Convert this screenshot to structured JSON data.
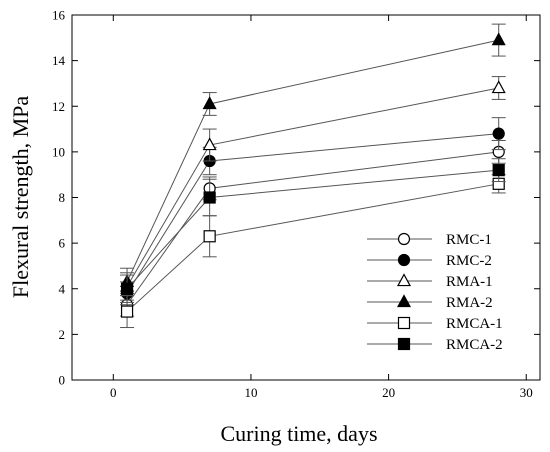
{
  "chart_data": {
    "type": "line",
    "xlabel": "Curing time, days",
    "ylabel": "Flexural strength, MPa",
    "xlim": [
      -3,
      31
    ],
    "ylim": [
      0,
      16
    ],
    "xticks": [
      0,
      10,
      20,
      30
    ],
    "yticks": [
      0,
      2,
      4,
      6,
      8,
      10,
      12,
      14,
      16
    ],
    "grid": false,
    "legend_position": "bottom-right",
    "series": [
      {
        "name": "RMC-1",
        "marker": "circle-open",
        "x": [
          1,
          7,
          28
        ],
        "y": [
          3.3,
          8.4,
          10.0
        ],
        "err": [
          0.5,
          0.5,
          0.5
        ]
      },
      {
        "name": "RMC-2",
        "marker": "circle-filled",
        "x": [
          1,
          7,
          28
        ],
        "y": [
          3.8,
          9.6,
          10.8
        ],
        "err": [
          0.5,
          0.6,
          0.7
        ]
      },
      {
        "name": "RMA-1",
        "marker": "triangle-open",
        "x": [
          1,
          7,
          28
        ],
        "y": [
          4.1,
          10.3,
          12.8
        ],
        "err": [
          0.6,
          0.7,
          0.5
        ]
      },
      {
        "name": "RMA-2",
        "marker": "triangle-filled",
        "x": [
          1,
          7,
          28
        ],
        "y": [
          4.3,
          12.1,
          14.9
        ],
        "err": [
          0.6,
          0.5,
          0.7
        ]
      },
      {
        "name": "RMCA-1",
        "marker": "square-open",
        "x": [
          1,
          7,
          28
        ],
        "y": [
          3.0,
          6.3,
          8.6
        ],
        "err": [
          0.7,
          0.9,
          0.4
        ]
      },
      {
        "name": "RMCA-2",
        "marker": "square-filled",
        "x": [
          1,
          7,
          28
        ],
        "y": [
          4.0,
          8.0,
          9.2
        ],
        "err": [
          0.6,
          0.8,
          0.5
        ]
      }
    ]
  }
}
